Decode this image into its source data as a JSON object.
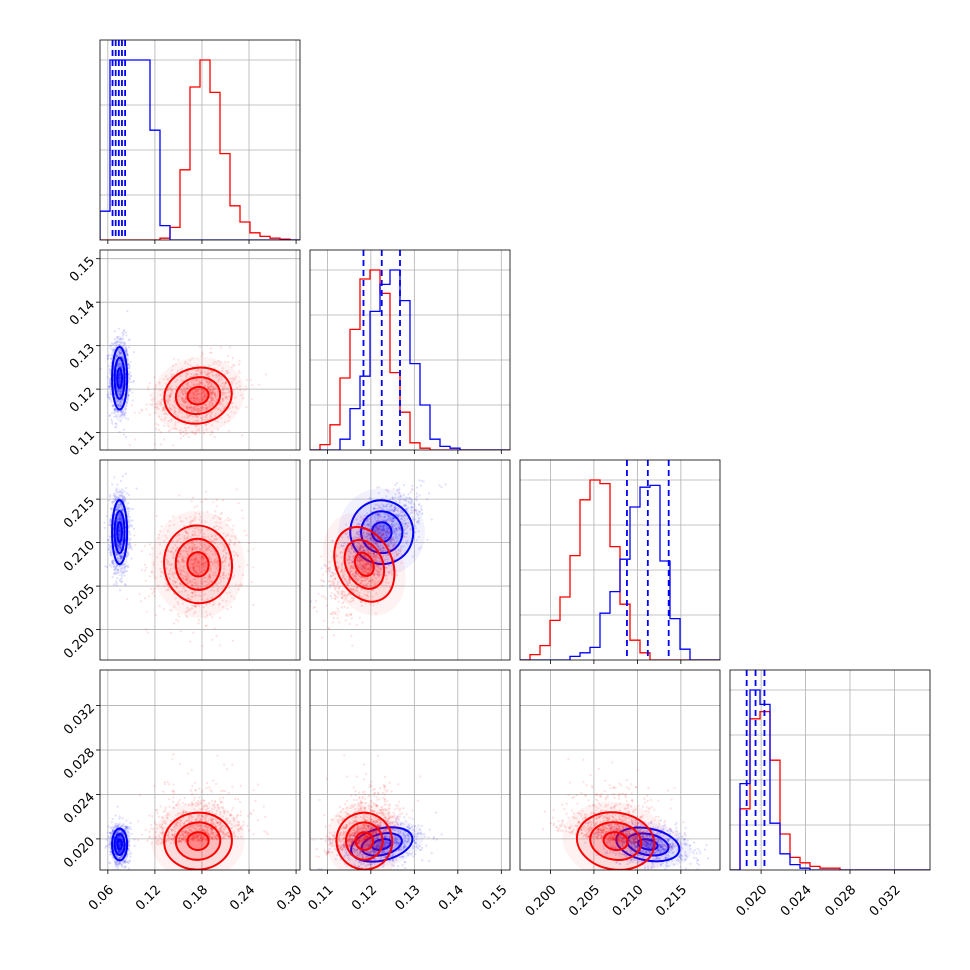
{
  "chart_data": {
    "type": "corner",
    "colors": {
      "blue": "#0000ff",
      "red": "#ff0000",
      "grid": "#b0b0b0",
      "frame": "#000000"
    },
    "series": [
      {
        "name": "blue",
        "color": "#0000ff",
        "mean": [
          0.075,
          0.1225,
          0.2112,
          0.0195
        ],
        "std": [
          0.006,
          0.0045,
          0.0023,
          0.0009
        ],
        "corr": {
          "2-1": 0.65,
          "3-1": 0.3,
          "3-2": -0.25
        },
        "quantiles_shown": true
      },
      {
        "name": "red",
        "color": "#ff0000",
        "mean": [
          0.175,
          0.1185,
          0.2075,
          0.0198
        ],
        "std": [
          0.027,
          0.004,
          0.0028,
          0.0016
        ],
        "corr": {
          "1-0": 0.25,
          "2-0": 0.15,
          "2-1": 0.55,
          "3-1": 0.4,
          "3-2": -0.2,
          "3-0": 0.1
        },
        "quantiles_shown": false
      }
    ],
    "parameters": [
      {
        "index": 0,
        "range": [
          0.05,
          0.305
        ],
        "ticks": [
          "0.06",
          "0.12",
          "0.18",
          "0.24",
          "0.30"
        ],
        "tick_values": [
          0.06,
          0.12,
          0.18,
          0.24,
          0.3
        ]
      },
      {
        "index": 1,
        "range": [
          0.106,
          0.152
        ],
        "ticks": [
          "0.11",
          "0.12",
          "0.13",
          "0.14",
          "0.15"
        ],
        "tick_values": [
          0.11,
          0.12,
          0.13,
          0.14,
          0.15
        ]
      },
      {
        "index": 2,
        "range": [
          0.1965,
          0.2195
        ],
        "ticks": [
          "0.200",
          "0.205",
          "0.210",
          "0.215"
        ],
        "tick_values": [
          0.2,
          0.205,
          0.21,
          0.215
        ]
      },
      {
        "index": 3,
        "range": [
          0.0172,
          0.0352
        ],
        "ticks": [
          "0.020",
          "0.024",
          "0.028",
          "0.032"
        ],
        "tick_values": [
          0.02,
          0.024,
          0.028,
          0.032
        ]
      }
    ],
    "blue_quantile_lines": [
      [
        0.066,
        0.07,
        0.074,
        0.078,
        0.082
      ],
      [
        0.1183,
        0.1225,
        0.1267
      ],
      [
        0.2088,
        0.2112,
        0.2136
      ],
      [
        0.0187,
        0.0195,
        0.0203
      ]
    ],
    "histograms": [
      {
        "param": 0,
        "blue": [
          0.16,
          1.0,
          1.0,
          1.0,
          1.0,
          0.61,
          0.08,
          0,
          0,
          0,
          0,
          0,
          0,
          0,
          0,
          0,
          0,
          0,
          0,
          0
        ],
        "red": [
          0,
          0,
          0,
          0,
          0,
          0,
          0.01,
          0.07,
          0.39,
          0.85,
          1.0,
          0.82,
          0.48,
          0.19,
          0.1,
          0.04,
          0.02,
          0.01,
          0.005,
          0
        ]
      },
      {
        "param": 1,
        "blue": [
          0,
          0,
          0,
          0.06,
          0.23,
          0.41,
          0.77,
          0.92,
          1.0,
          0.83,
          0.48,
          0.25,
          0.06,
          0.02,
          0.01,
          0,
          0,
          0,
          0,
          0
        ],
        "red": [
          0,
          0.03,
          0.14,
          0.4,
          0.67,
          0.95,
          1.0,
          0.87,
          0.43,
          0.21,
          0.04,
          0.01,
          0,
          0,
          0,
          0,
          0,
          0,
          0,
          0
        ]
      },
      {
        "param": 2,
        "blue": [
          0,
          0,
          0,
          0,
          0,
          0.02,
          0.04,
          0.07,
          0.26,
          0.38,
          0.56,
          0.85,
          0.96,
          0.97,
          0.55,
          0.23,
          0.06,
          0,
          0,
          0
        ],
        "red": [
          0,
          0.03,
          0.08,
          0.22,
          0.35,
          0.58,
          0.89,
          1.0,
          0.98,
          0.63,
          0.31,
          0.11,
          0.04,
          0,
          0,
          0,
          0,
          0,
          0,
          0
        ]
      },
      {
        "param": 3,
        "blue": [
          0,
          0.48,
          1.0,
          0.92,
          0.26,
          0.09,
          0.03,
          0.01,
          0,
          0,
          0,
          0,
          0,
          0,
          0,
          0,
          0,
          0,
          0,
          0
        ],
        "red": [
          0,
          0.34,
          0.84,
          0.88,
          0.61,
          0.2,
          0.07,
          0.04,
          0.02,
          0.01,
          0.01,
          0,
          0,
          0,
          0,
          0,
          0,
          0,
          0,
          0
        ]
      }
    ],
    "y_axis_tick_labels_rows": [
      {
        "row": 1,
        "ticks": [
          "0.11",
          "0.12",
          "0.13",
          "0.14",
          "0.15"
        ]
      },
      {
        "row": 2,
        "ticks": [
          "0.200",
          "0.205",
          "0.210",
          "0.215"
        ]
      },
      {
        "row": 3,
        "ticks": [
          "0.020",
          "0.024",
          "0.028",
          "0.032"
        ]
      }
    ],
    "x_axis_tick_labels_cols": [
      {
        "col": 0,
        "ticks": [
          "0.06",
          "0.12",
          "0.18",
          "0.24",
          "0.30"
        ]
      },
      {
        "col": 1,
        "ticks": [
          "0.11",
          "0.12",
          "0.13",
          "0.14",
          "0.15"
        ]
      },
      {
        "col": 2,
        "ticks": [
          "0.200",
          "0.205",
          "0.210",
          "0.215"
        ]
      },
      {
        "col": 3,
        "ticks": [
          "0.020",
          "0.024",
          "0.028",
          "0.032"
        ]
      }
    ],
    "grid": true,
    "title": "",
    "xlabel": "",
    "ylabel": ""
  }
}
